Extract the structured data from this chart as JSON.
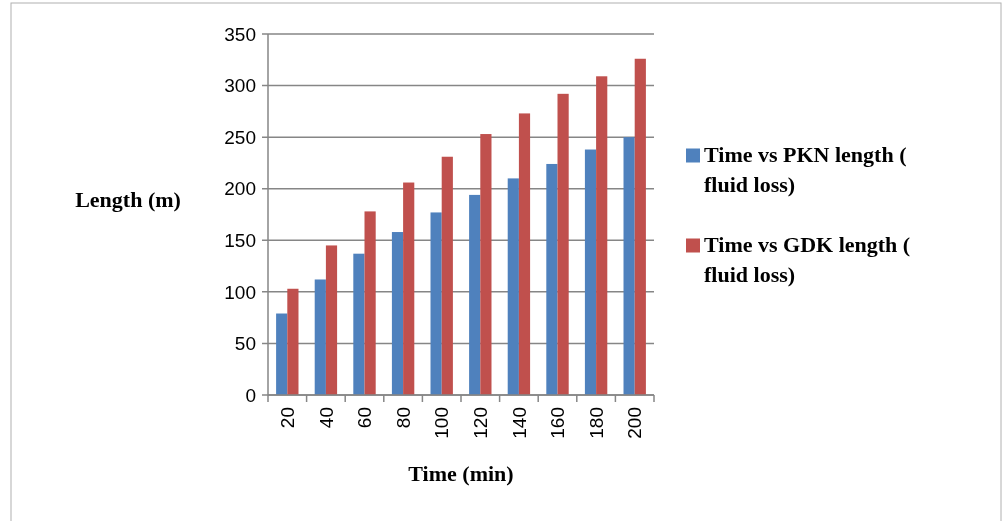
{
  "chart_data": {
    "type": "bar",
    "xlabel": "Time (min)",
    "ylabel": "Length (m)",
    "categories": [
      "20",
      "40",
      "60",
      "80",
      "100",
      "120",
      "140",
      "160",
      "180",
      "200"
    ],
    "series": [
      {
        "name": "Time vs PKN length ( fluid loss)",
        "color": "#4f81bd",
        "values": [
          79,
          112,
          137,
          158,
          177,
          194,
          210,
          224,
          238,
          250
        ]
      },
      {
        "name": "Time vs GDK length ( fluid loss)",
        "color": "#c0504d",
        "values": [
          103,
          145,
          178,
          206,
          231,
          253,
          273,
          292,
          309,
          326
        ]
      }
    ],
    "ylim": [
      0,
      350
    ],
    "yticks": [
      0,
      50,
      100,
      150,
      200,
      250,
      300,
      350
    ],
    "grid": "y",
    "legend": "right"
  }
}
